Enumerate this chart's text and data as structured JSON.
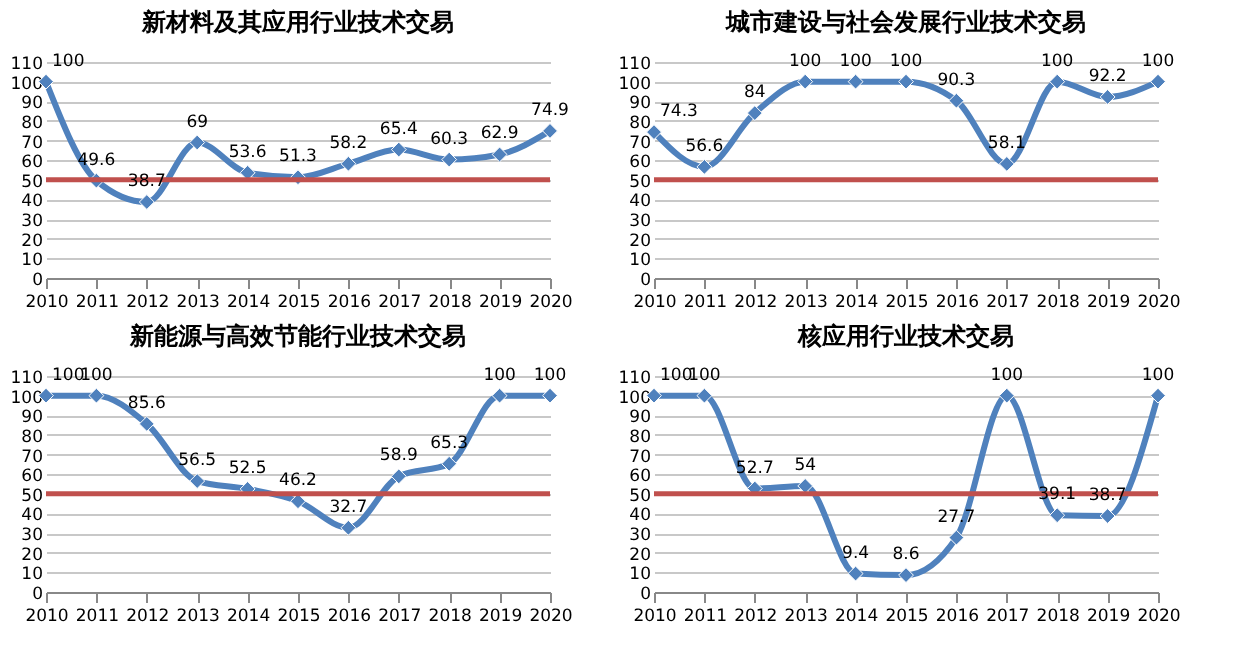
{
  "chart_data": [
    {
      "type": "line",
      "title": "新材料及其应用行业技术交易",
      "categories": [
        "2010",
        "2011",
        "2012",
        "2013",
        "2014",
        "2015",
        "2016",
        "2017",
        "2018",
        "2019",
        "2020"
      ],
      "series": [
        {
          "color": "#4f81bd",
          "values": [
            100,
            49.6,
            38.7,
            69,
            53.6,
            51.3,
            58.2,
            65.4,
            60.3,
            62.9,
            74.9
          ]
        }
      ],
      "ylim": [
        0,
        110
      ],
      "yticks": [
        0,
        10,
        20,
        30,
        40,
        50,
        60,
        70,
        80,
        90,
        100,
        110
      ],
      "grid": "y",
      "marker": "diamond",
      "data_labels": true,
      "ref_lines": [
        {
          "axis": "y",
          "value": 50,
          "color": "#c0504d"
        }
      ]
    },
    {
      "type": "line",
      "title": "城市建设与社会发展行业技术交易",
      "categories": [
        "2010",
        "2011",
        "2012",
        "2013",
        "2014",
        "2015",
        "2016",
        "2017",
        "2018",
        "2019",
        "2020"
      ],
      "series": [
        {
          "color": "#4f81bd",
          "values": [
            74.3,
            56.6,
            84,
            100,
            100,
            100,
            90.3,
            58.1,
            100,
            92.2,
            100
          ]
        }
      ],
      "ylim": [
        0,
        110
      ],
      "yticks": [
        0,
        10,
        20,
        30,
        40,
        50,
        60,
        70,
        80,
        90,
        100,
        110
      ],
      "grid": "y",
      "marker": "diamond",
      "data_labels": true,
      "ref_lines": [
        {
          "axis": "y",
          "value": 50,
          "color": "#c0504d"
        }
      ]
    },
    {
      "type": "line",
      "title": "新能源与高效节能行业技术交易",
      "categories": [
        "2010",
        "2011",
        "2012",
        "2013",
        "2014",
        "2015",
        "2016",
        "2017",
        "2018",
        "2019",
        "2020"
      ],
      "series": [
        {
          "color": "#4f81bd",
          "values": [
            100,
            100,
            85.6,
            56.5,
            52.5,
            46.2,
            32.7,
            58.9,
            65.3,
            100,
            100
          ]
        }
      ],
      "ylim": [
        0,
        110
      ],
      "yticks": [
        0,
        10,
        20,
        30,
        40,
        50,
        60,
        70,
        80,
        90,
        100,
        110
      ],
      "grid": "y",
      "marker": "diamond",
      "data_labels": true,
      "ref_lines": [
        {
          "axis": "y",
          "value": 50,
          "color": "#c0504d"
        }
      ]
    },
    {
      "type": "line",
      "title": "核应用行业技术交易",
      "categories": [
        "2010",
        "2011",
        "2012",
        "2013",
        "2014",
        "2015",
        "2016",
        "2017",
        "2018",
        "2019",
        "2020"
      ],
      "series": [
        {
          "color": "#4f81bd",
          "values": [
            100,
            100,
            52.7,
            54,
            9.4,
            8.6,
            27.7,
            100,
            39.1,
            38.7,
            100
          ]
        }
      ],
      "ylim": [
        0,
        110
      ],
      "yticks": [
        0,
        10,
        20,
        30,
        40,
        50,
        60,
        70,
        80,
        90,
        100,
        110
      ],
      "grid": "y",
      "marker": "diamond",
      "data_labels": true,
      "ref_lines": [
        {
          "axis": "y",
          "value": 50,
          "color": "#c0504d"
        }
      ]
    }
  ]
}
